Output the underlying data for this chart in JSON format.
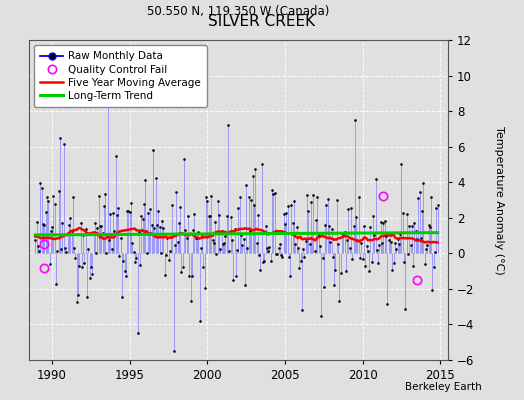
{
  "title": "SILVER CREEK",
  "subtitle": "50.550 N, 119.350 W (Canada)",
  "ylabel": "Temperature Anomaly (°C)",
  "xlabel_note": "Berkeley Earth",
  "ylim": [
    -6,
    12
  ],
  "yticks": [
    -6,
    -4,
    -2,
    0,
    2,
    4,
    6,
    8,
    10,
    12
  ],
  "xlim": [
    1988.5,
    2015.5
  ],
  "xticks": [
    1990,
    1995,
    2000,
    2005,
    2010,
    2015
  ],
  "background_color": "#e0e0e0",
  "plot_bg_color": "#e0e0e0",
  "grid_color": "#ffffff",
  "raw_line_color": "#8080ff",
  "raw_dot_color": "#000000",
  "qc_fail_color": "#ff00ff",
  "moving_avg_color": "#ff0000",
  "trend_color": "#00cc00",
  "seed": 12345,
  "n_months": 312,
  "start_year": 1988.917,
  "qc_fail_points": [
    [
      1989.5,
      0.5
    ],
    [
      1989.5,
      -0.8
    ]
  ],
  "trend_level": 1.1
}
